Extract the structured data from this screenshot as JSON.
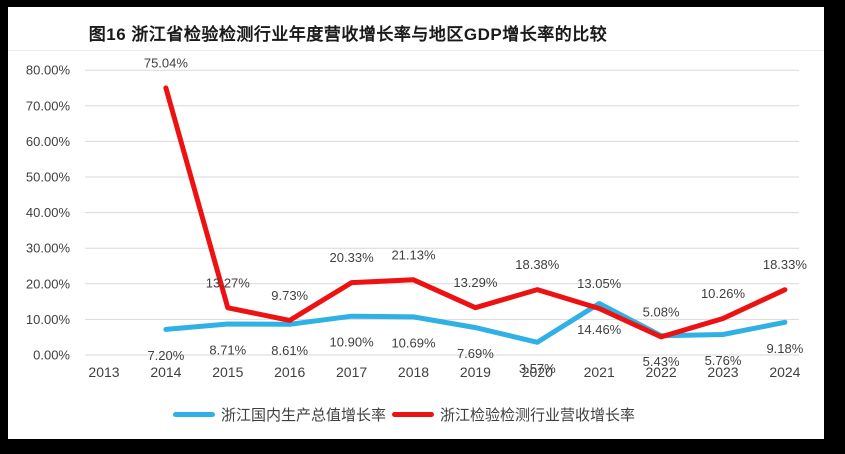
{
  "chart_data": {
    "type": "line",
    "title": "图16  浙江省检验检测行业年度营收增长率与地区GDP增长率的比较",
    "categories": [
      "2013",
      "2014",
      "2015",
      "2016",
      "2017",
      "2018",
      "2019",
      "2020",
      "2021",
      "2022",
      "2023",
      "2024"
    ],
    "series": [
      {
        "name": "浙江国内生产总值增长率",
        "color": "#2FB1E5",
        "values": [
          null,
          7.2,
          8.71,
          8.61,
          10.9,
          10.69,
          7.69,
          3.57,
          14.46,
          5.43,
          5.76,
          9.18
        ],
        "label_position": "below"
      },
      {
        "name": "浙江检验检测行业营收增长率",
        "color": "#EE1111",
        "values": [
          null,
          75.04,
          13.27,
          9.73,
          20.33,
          21.13,
          13.29,
          18.38,
          13.05,
          5.08,
          10.26,
          18.33
        ],
        "label_position": "above"
      }
    ],
    "data_label_format": "0.00%",
    "ylim": [
      0,
      80
    ],
    "ytick_step": 10,
    "ytick_labels": [
      "0.00%",
      "10.00%",
      "20.00%",
      "30.00%",
      "40.00%",
      "50.00%",
      "60.00%",
      "70.00%",
      "80.00%"
    ],
    "grid": true,
    "legend_position": "bottom",
    "colors": {
      "grid_line": "#D9D9D9",
      "axis_text": "#3F3F3F",
      "data_label_text": "#3F3F3F",
      "canvas_background": "#FFFFFF",
      "frame_background": "#000000"
    }
  }
}
